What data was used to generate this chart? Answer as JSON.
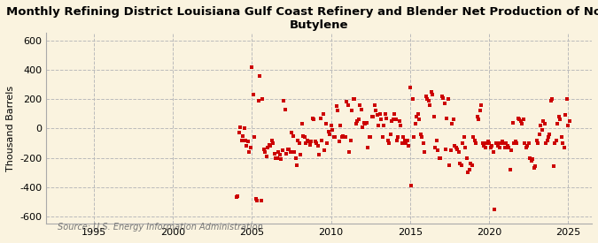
{
  "title": "Monthly Refining District Louisiana Gulf Coast Refinery and Blender Net Production of Normal\nButylene",
  "ylabel": "Thousand Barrels",
  "source": "Source: U.S. Energy Information Administration",
  "xlim": [
    1992.0,
    2026.5
  ],
  "ylim": [
    -650,
    650
  ],
  "yticks": [
    -600,
    -400,
    -200,
    0,
    200,
    400,
    600
  ],
  "xticks": [
    1995,
    2000,
    2005,
    2010,
    2015,
    2020,
    2025
  ],
  "background_color": "#FAF3DF",
  "plot_bg_color": "#FAF3DF",
  "marker_color": "#CC0000",
  "marker": "s",
  "marker_size": 3.0,
  "grid_color": "#BBBBBB",
  "grid_style": "--",
  "title_fontsize": 9.5,
  "axis_fontsize": 8,
  "tick_fontsize": 8,
  "source_fontsize": 7,
  "data": {
    "years_months": [
      2004.0,
      2004.083,
      2004.167,
      2004.25,
      2004.333,
      2004.417,
      2004.5,
      2004.583,
      2004.667,
      2004.75,
      2004.833,
      2004.917,
      2005.0,
      2005.083,
      2005.167,
      2005.25,
      2005.333,
      2005.417,
      2005.5,
      2005.583,
      2005.667,
      2005.75,
      2005.833,
      2005.917,
      2006.0,
      2006.083,
      2006.167,
      2006.25,
      2006.333,
      2006.417,
      2006.5,
      2006.583,
      2006.667,
      2006.75,
      2006.833,
      2006.917,
      2007.0,
      2007.083,
      2007.167,
      2007.25,
      2007.333,
      2007.417,
      2007.5,
      2007.583,
      2007.667,
      2007.75,
      2007.833,
      2007.917,
      2008.0,
      2008.083,
      2008.167,
      2008.25,
      2008.333,
      2008.417,
      2008.5,
      2008.583,
      2008.667,
      2008.75,
      2008.833,
      2008.917,
      2009.0,
      2009.083,
      2009.167,
      2009.25,
      2009.333,
      2009.417,
      2009.5,
      2009.583,
      2009.667,
      2009.75,
      2009.833,
      2009.917,
      2010.0,
      2010.083,
      2010.167,
      2010.25,
      2010.333,
      2010.417,
      2010.5,
      2010.583,
      2010.667,
      2010.75,
      2010.833,
      2010.917,
      2011.0,
      2011.083,
      2011.167,
      2011.25,
      2011.333,
      2011.417,
      2011.5,
      2011.583,
      2011.667,
      2011.75,
      2011.833,
      2011.917,
      2012.0,
      2012.083,
      2012.167,
      2012.25,
      2012.333,
      2012.417,
      2012.5,
      2012.583,
      2012.667,
      2012.75,
      2012.833,
      2012.917,
      2013.0,
      2013.083,
      2013.167,
      2013.25,
      2013.333,
      2013.417,
      2013.5,
      2013.583,
      2013.667,
      2013.75,
      2013.833,
      2013.917,
      2014.0,
      2014.083,
      2014.167,
      2014.25,
      2014.333,
      2014.417,
      2014.5,
      2014.583,
      2014.667,
      2014.75,
      2014.833,
      2014.917,
      2015.0,
      2015.083,
      2015.167,
      2015.25,
      2015.333,
      2015.417,
      2015.5,
      2015.583,
      2015.667,
      2015.75,
      2015.833,
      2015.917,
      2016.0,
      2016.083,
      2016.167,
      2016.25,
      2016.333,
      2016.417,
      2016.5,
      2016.583,
      2016.667,
      2016.75,
      2016.833,
      2016.917,
      2017.0,
      2017.083,
      2017.167,
      2017.25,
      2017.333,
      2017.417,
      2017.5,
      2017.583,
      2017.667,
      2017.75,
      2017.833,
      2017.917,
      2018.0,
      2018.083,
      2018.167,
      2018.25,
      2018.333,
      2018.417,
      2018.5,
      2018.583,
      2018.667,
      2018.75,
      2018.833,
      2018.917,
      2019.0,
      2019.083,
      2019.167,
      2019.25,
      2019.333,
      2019.417,
      2019.5,
      2019.583,
      2019.667,
      2019.75,
      2019.833,
      2019.917,
      2020.0,
      2020.083,
      2020.167,
      2020.25,
      2020.333,
      2020.417,
      2020.5,
      2020.583,
      2020.667,
      2020.75,
      2020.833,
      2020.917,
      2021.0,
      2021.083,
      2021.167,
      2021.25,
      2021.333,
      2021.417,
      2021.5,
      2021.583,
      2021.667,
      2021.75,
      2021.833,
      2021.917,
      2022.0,
      2022.083,
      2022.167,
      2022.25,
      2022.333,
      2022.417,
      2022.5,
      2022.583,
      2022.667,
      2022.75,
      2022.833,
      2022.917,
      2023.0,
      2023.083,
      2023.167,
      2023.25,
      2023.333,
      2023.417,
      2023.5,
      2023.583,
      2023.667,
      2023.75,
      2023.833,
      2023.917,
      2024.0,
      2024.083,
      2024.167,
      2024.25,
      2024.333,
      2024.417,
      2024.5,
      2024.583,
      2024.667,
      2024.75,
      2024.833,
      2024.917,
      2025.0,
      2025.083
    ],
    "values": [
      -470,
      -460,
      -30,
      10,
      -80,
      -50,
      5,
      -80,
      -120,
      -90,
      -160,
      -130,
      420,
      230,
      -60,
      -480,
      -490,
      190,
      360,
      -490,
      200,
      -140,
      -160,
      -190,
      -130,
      -110,
      -120,
      -80,
      -100,
      -170,
      -200,
      -200,
      -160,
      -180,
      -210,
      -150,
      190,
      130,
      -170,
      -140,
      -140,
      -160,
      -30,
      -50,
      -160,
      -200,
      -250,
      -80,
      -100,
      -180,
      30,
      -50,
      -60,
      -100,
      -80,
      -90,
      -110,
      -90,
      70,
      60,
      -90,
      -100,
      -120,
      -180,
      70,
      -80,
      100,
      -150,
      30,
      -100,
      -20,
      -40,
      20,
      -10,
      -60,
      -60,
      150,
      120,
      -90,
      20,
      -60,
      -50,
      -60,
      -60,
      180,
      160,
      -160,
      -80,
      120,
      200,
      200,
      30,
      50,
      60,
      160,
      130,
      10,
      40,
      30,
      40,
      -130,
      -60,
      -60,
      80,
      80,
      160,
      120,
      90,
      20,
      100,
      60,
      -60,
      20,
      100,
      70,
      -80,
      -100,
      -40,
      50,
      60,
      100,
      60,
      -80,
      -60,
      50,
      20,
      -100,
      -60,
      -80,
      -100,
      -80,
      -120,
      280,
      -390,
      200,
      -60,
      30,
      80,
      100,
      60,
      -40,
      -60,
      -100,
      -160,
      220,
      200,
      190,
      160,
      250,
      230,
      80,
      -130,
      -80,
      -150,
      -200,
      -200,
      220,
      210,
      170,
      -140,
      70,
      200,
      -250,
      -150,
      30,
      60,
      -120,
      -130,
      -140,
      -160,
      -240,
      -250,
      -100,
      -60,
      -130,
      -200,
      -300,
      -280,
      -240,
      -250,
      -60,
      -80,
      -100,
      80,
      60,
      120,
      160,
      -100,
      -120,
      -130,
      -100,
      -90,
      -100,
      -130,
      -120,
      -160,
      -550,
      -100,
      -100,
      -120,
      -130,
      -100,
      -90,
      -100,
      -130,
      -100,
      -120,
      -130,
      -280,
      -150,
      40,
      -100,
      -90,
      -100,
      70,
      60,
      50,
      30,
      60,
      -100,
      -130,
      -120,
      -100,
      -200,
      -220,
      -210,
      -270,
      -260,
      -80,
      -100,
      -40,
      20,
      -10,
      50,
      30,
      -100,
      -80,
      -60,
      -40,
      190,
      200,
      -260,
      -100,
      -80,
      30,
      80,
      60,
      -60,
      -100,
      -130,
      90,
      200,
      20,
      50
    ]
  }
}
